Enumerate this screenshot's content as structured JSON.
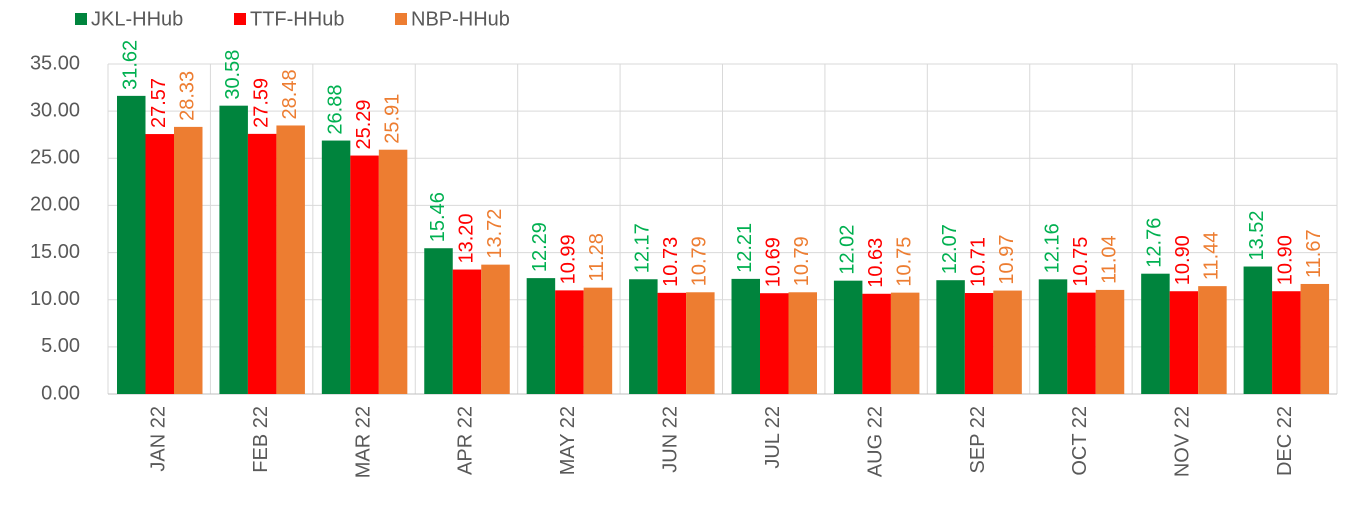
{
  "chart_data": {
    "type": "bar",
    "categories": [
      "JAN 22",
      "FEB 22",
      "MAR 22",
      "APR 22",
      "MAY 22",
      "JUN 22",
      "JUL 22",
      "AUG 22",
      "SEP 22",
      "OCT 22",
      "NOV 22",
      "DEC 22"
    ],
    "series": [
      {
        "name": "JKL-HHub",
        "color": "#00843D",
        "label_color": "#00B050",
        "values": [
          31.62,
          30.58,
          26.88,
          15.46,
          12.29,
          12.17,
          12.21,
          12.02,
          12.07,
          12.16,
          12.76,
          13.52
        ],
        "value_labels": [
          "31.62",
          "30.58",
          "26.88",
          "15.46",
          "12.29",
          "12.17",
          "12.21",
          "12.02",
          "12.07",
          "12.16",
          "12.76",
          "13.52"
        ]
      },
      {
        "name": "TTF-HHub",
        "color": "#FF0000",
        "label_color": "#FF0000",
        "values": [
          27.57,
          27.59,
          25.29,
          13.2,
          10.99,
          10.73,
          10.69,
          10.63,
          10.71,
          10.75,
          10.9,
          10.9
        ],
        "value_labels": [
          "27.57",
          "27.59",
          "25.29",
          "13.20",
          "10.99",
          "10.73",
          "10.69",
          "10.63",
          "10.71",
          "10.75",
          "10.90",
          "10.90"
        ]
      },
      {
        "name": "NBP-HHub",
        "color": "#ED7D31",
        "label_color": "#ED7D31",
        "values": [
          28.33,
          28.48,
          25.91,
          13.72,
          11.28,
          10.79,
          10.79,
          10.75,
          10.97,
          11.04,
          11.44,
          11.67
        ],
        "value_labels": [
          "28.33",
          "28.48",
          "25.91",
          "13.72",
          "11.28",
          "10.79",
          "10.79",
          "10.75",
          "10.97",
          "11.04",
          "11.44",
          "11.67"
        ]
      }
    ],
    "ylim": [
      0,
      35
    ],
    "yticks": [
      {
        "value": 0,
        "label": "0.00"
      },
      {
        "value": 5,
        "label": "5.00"
      },
      {
        "value": 10,
        "label": "10.00"
      },
      {
        "value": 15,
        "label": "15.00"
      },
      {
        "value": 20,
        "label": "20.00"
      },
      {
        "value": 25,
        "label": "25.00"
      },
      {
        "value": 30,
        "label": "30.00"
      },
      {
        "value": 35,
        "label": "35.00"
      }
    ],
    "grid": true,
    "legend": "top"
  }
}
